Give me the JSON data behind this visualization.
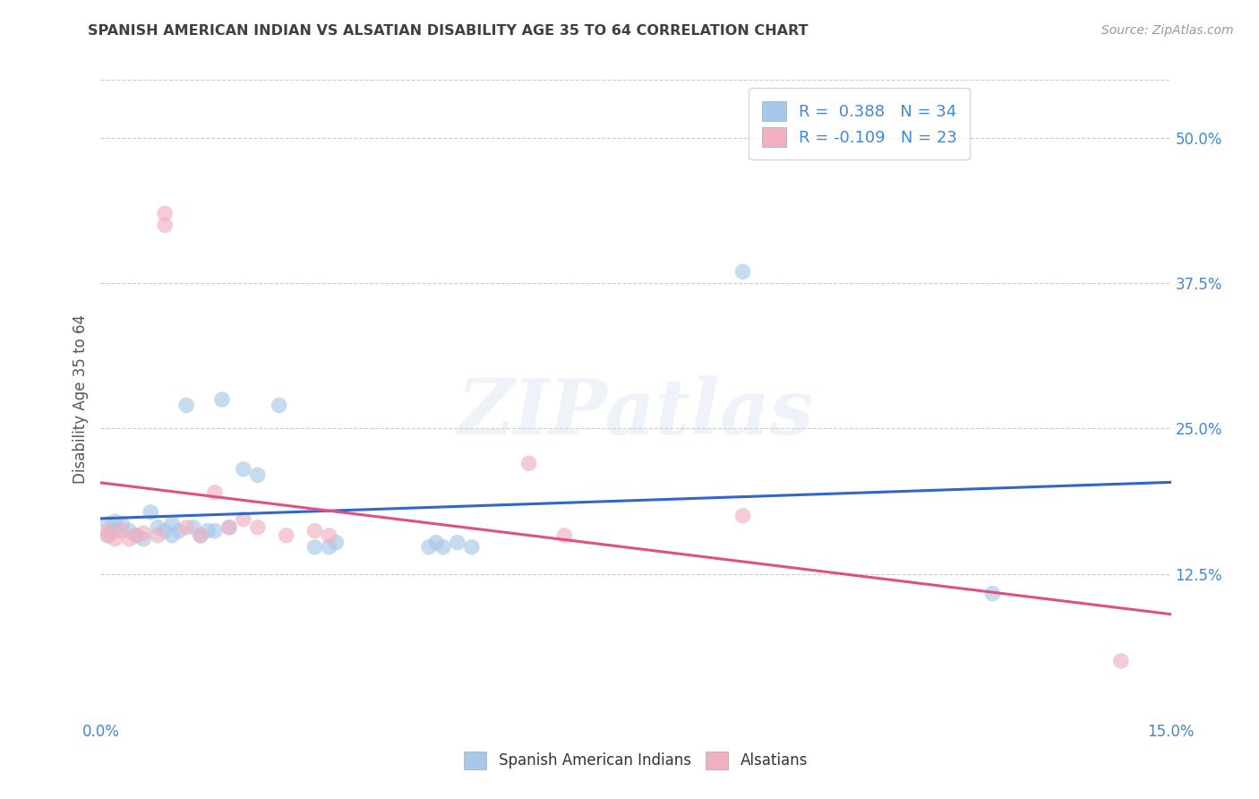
{
  "title": "SPANISH AMERICAN INDIAN VS ALSATIAN DISABILITY AGE 35 TO 64 CORRELATION CHART",
  "source": "Source: ZipAtlas.com",
  "ylabel": "Disability Age 35 to 64",
  "xlim": [
    0.0,
    0.15
  ],
  "ylim": [
    0.0,
    0.55
  ],
  "xtick_positions": [
    0.0,
    0.15
  ],
  "xtick_labels": [
    "0.0%",
    "15.0%"
  ],
  "yticks": [
    0.125,
    0.25,
    0.375,
    0.5
  ],
  "ytick_labels": [
    "12.5%",
    "25.0%",
    "37.5%",
    "50.0%"
  ],
  "blue_R": 0.388,
  "blue_N": 34,
  "pink_R": -0.109,
  "pink_N": 23,
  "blue_color": "#a8c8e8",
  "pink_color": "#f0b0c0",
  "blue_line_color": "#3366cc",
  "pink_line_color": "#e05080",
  "legend_label_blue": "Spanish American Indians",
  "legend_label_pink": "Alsatians",
  "watermark": "ZIPatlas",
  "background_color": "#ffffff",
  "grid_color": "#cccccc",
  "title_color": "#404040",
  "axis_label_color": "#555555",
  "tick_color": "#4488cc",
  "blue_scatter_x": [
    0.001,
    0.002,
    0.003,
    0.004,
    0.005,
    0.006,
    0.007,
    0.008,
    0.009,
    0.01,
    0.01,
    0.011,
    0.012,
    0.013,
    0.014,
    0.015,
    0.016,
    0.017,
    0.018,
    0.019,
    0.02,
    0.021,
    0.022,
    0.023,
    0.024,
    0.03,
    0.032,
    0.033,
    0.034,
    0.045,
    0.046,
    0.047,
    0.09,
    0.125
  ],
  "blue_scatter_y": [
    0.16,
    0.155,
    0.165,
    0.158,
    0.162,
    0.155,
    0.175,
    0.163,
    0.168,
    0.16,
    0.175,
    0.168,
    0.165,
    0.155,
    0.158,
    0.162,
    0.272,
    0.27,
    0.168,
    0.162,
    0.268,
    0.21,
    0.205,
    0.165,
    0.16,
    0.145,
    0.148,
    0.148,
    0.15,
    0.148,
    0.152,
    0.15,
    0.385,
    0.105
  ],
  "pink_scatter_x": [
    0.001,
    0.002,
    0.003,
    0.004,
    0.005,
    0.006,
    0.007,
    0.008,
    0.009,
    0.01,
    0.012,
    0.014,
    0.016,
    0.018,
    0.02,
    0.022,
    0.025,
    0.03,
    0.032,
    0.06,
    0.065,
    0.09,
    0.143
  ],
  "pink_scatter_y": [
    0.155,
    0.158,
    0.162,
    0.155,
    0.158,
    0.16,
    0.155,
    0.162,
    0.435,
    0.43,
    0.165,
    0.158,
    0.195,
    0.165,
    0.175,
    0.165,
    0.155,
    0.162,
    0.158,
    0.218,
    0.155,
    0.175,
    0.05
  ]
}
